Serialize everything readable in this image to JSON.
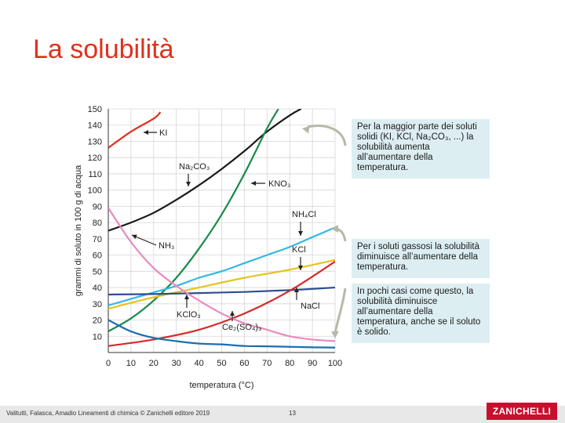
{
  "slide": {
    "title": "La solubilità",
    "footer_credit": "Valitutti, Falasca, Amadio Lineamenti di chimica © Zanichelli editore 2019",
    "page_number": "13",
    "logo": "ZANICHELLI"
  },
  "callouts": [
    "Per la maggior parte dei soluti solidi (KI, KCl, Na₂CO₃, ...) la solubilità aumenta all’aumentare della temperatura.",
    "Per i soluti gassosi la solubilità diminuisce all’aumentare della temperatura.",
    "In pochi casi come questo, la solubilità diminuisce all’aumentare della temperatura, anche se il soluto è solido."
  ],
  "chart_data": {
    "type": "line",
    "xlabel": "temperatura (°C)",
    "ylabel": "grammi di soluto in 100 g di acqua",
    "xlim": [
      0,
      100
    ],
    "ylim": [
      0,
      150
    ],
    "xticks": [
      0,
      10,
      20,
      30,
      40,
      50,
      60,
      70,
      80,
      90,
      100
    ],
    "yticks": [
      10,
      20,
      30,
      40,
      50,
      60,
      70,
      80,
      90,
      100,
      110,
      120,
      130,
      140,
      150
    ],
    "grid": true,
    "series": [
      {
        "name": "KI",
        "color": "#e0301e",
        "x": [
          0,
          10,
          20,
          23
        ],
        "y": [
          126,
          136,
          144,
          148
        ]
      },
      {
        "name": "Na2CO3",
        "color": "#1a1a1a",
        "x": [
          0,
          10,
          20,
          30,
          40,
          50,
          60,
          70,
          80,
          85
        ],
        "y": [
          75,
          80,
          86,
          94,
          103,
          113,
          124,
          136,
          146,
          150
        ]
      },
      {
        "name": "KNO3",
        "color": "#1a8a4a",
        "x": [
          0,
          10,
          20,
          30,
          40,
          50,
          60,
          70,
          75
        ],
        "y": [
          13,
          21,
          32,
          46,
          64,
          85,
          110,
          138,
          150
        ]
      },
      {
        "name": "NH4Cl",
        "color": "#33b8e6",
        "x": [
          0,
          10,
          20,
          30,
          40,
          50,
          60,
          70,
          80,
          90,
          100
        ],
        "y": [
          29,
          33,
          37,
          41,
          46,
          50,
          55,
          60,
          65,
          71,
          77
        ]
      },
      {
        "name": "KCl",
        "color": "#e8c21e",
        "x": [
          0,
          20,
          40,
          60,
          80,
          100
        ],
        "y": [
          27,
          34,
          40,
          46,
          51,
          57
        ]
      },
      {
        "name": "NaCl",
        "color": "#2e4d8f",
        "x": [
          0,
          20,
          40,
          60,
          80,
          100
        ],
        "y": [
          35.7,
          36,
          36.6,
          37.3,
          38.4,
          40
        ]
      },
      {
        "name": "KClO3",
        "color": "#d42a2a",
        "x": [
          0,
          20,
          40,
          60,
          80,
          100
        ],
        "y": [
          4,
          8,
          14,
          24,
          38,
          56
        ]
      },
      {
        "name": "Ce2(SO4)3",
        "color": "#1a6fb0",
        "x": [
          0,
          10,
          20,
          30,
          40,
          50,
          60,
          70,
          80,
          90,
          100
        ],
        "y": [
          20,
          13,
          9,
          7,
          5.5,
          5,
          4,
          3.8,
          3.5,
          3.2,
          3
        ]
      },
      {
        "name": "NH3",
        "color": "#e88ac0",
        "x": [
          0,
          10,
          20,
          30,
          40,
          50,
          60,
          70,
          80,
          90,
          100
        ],
        "y": [
          89,
          68,
          52,
          41,
          32,
          24,
          18,
          14,
          10,
          8,
          7
        ]
      }
    ],
    "labels": [
      {
        "text": "KI"
      },
      {
        "text": "Na₂CO₃"
      },
      {
        "text": "KNO₃"
      },
      {
        "text": "NH₄Cl"
      },
      {
        "text": "KCl"
      },
      {
        "text": "NaCl"
      },
      {
        "text": "KClO₃"
      },
      {
        "text": "Ce₂(SO₄)₃"
      },
      {
        "text": "NH₃"
      }
    ]
  }
}
